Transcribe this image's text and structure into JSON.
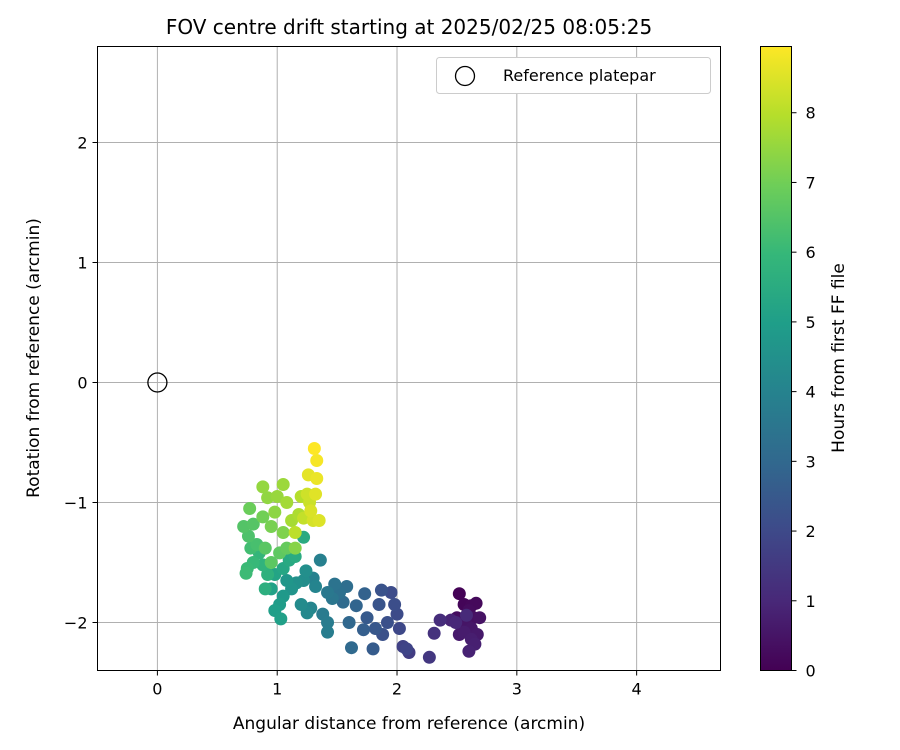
{
  "chart_data": {
    "type": "scatter",
    "title": "FOV centre drift starting at 2025/02/25 08:05:25",
    "xlabel": "Angular distance from reference (arcmin)",
    "ylabel": "Rotation from reference (arcmin)",
    "xlim": [
      -0.5,
      4.7
    ],
    "ylim": [
      -2.4,
      2.8
    ],
    "xticks": [
      0,
      1,
      2,
      3,
      4
    ],
    "yticks": [
      -2,
      -1,
      0,
      1,
      2
    ],
    "grid": true,
    "legend": {
      "position": "top-right",
      "entries": [
        "Reference platepar"
      ]
    },
    "reference_point": {
      "x": 0,
      "y": 0,
      "label": "Reference platepar"
    },
    "colorbar": {
      "label": "Hours from first FF file",
      "min": 0,
      "max": 8.95,
      "ticks": [
        0,
        1,
        2,
        3,
        4,
        5,
        6,
        7,
        8
      ],
      "colormap": "viridis"
    },
    "points": [
      {
        "x": 2.52,
        "y": -1.76,
        "h": 0.05
      },
      {
        "x": 2.56,
        "y": -1.85,
        "h": 0.1
      },
      {
        "x": 2.62,
        "y": -1.86,
        "h": 0.15
      },
      {
        "x": 2.66,
        "y": -1.84,
        "h": 0.2
      },
      {
        "x": 2.6,
        "y": -1.9,
        "h": 0.25
      },
      {
        "x": 2.5,
        "y": -1.96,
        "h": 0.3
      },
      {
        "x": 2.55,
        "y": -1.98,
        "h": 0.35
      },
      {
        "x": 2.64,
        "y": -1.96,
        "h": 0.4
      },
      {
        "x": 2.69,
        "y": -1.96,
        "h": 0.45
      },
      {
        "x": 2.58,
        "y": -2.02,
        "h": 0.5
      },
      {
        "x": 2.62,
        "y": -2.05,
        "h": 0.55
      },
      {
        "x": 2.67,
        "y": -2.1,
        "h": 0.6
      },
      {
        "x": 2.52,
        "y": -2.1,
        "h": 0.65
      },
      {
        "x": 2.56,
        "y": -2.08,
        "h": 0.7
      },
      {
        "x": 2.62,
        "y": -2.14,
        "h": 0.75
      },
      {
        "x": 2.65,
        "y": -2.18,
        "h": 0.8
      },
      {
        "x": 2.6,
        "y": -2.24,
        "h": 0.85
      },
      {
        "x": 2.45,
        "y": -1.98,
        "h": 0.9
      },
      {
        "x": 2.49,
        "y": -2.0,
        "h": 1.0
      },
      {
        "x": 2.58,
        "y": -1.94,
        "h": 1.05
      },
      {
        "x": 2.36,
        "y": -1.98,
        "h": 1.15
      },
      {
        "x": 2.31,
        "y": -2.09,
        "h": 1.3
      },
      {
        "x": 2.27,
        "y": -2.29,
        "h": 1.45
      },
      {
        "x": 2.1,
        "y": -2.25,
        "h": 1.6
      },
      {
        "x": 2.05,
        "y": -2.2,
        "h": 1.75
      },
      {
        "x": 2.08,
        "y": -2.22,
        "h": 1.85
      },
      {
        "x": 2.02,
        "y": -2.05,
        "h": 1.95
      },
      {
        "x": 2.0,
        "y": -1.93,
        "h": 2.05
      },
      {
        "x": 1.95,
        "y": -1.75,
        "h": 2.1
      },
      {
        "x": 1.98,
        "y": -1.85,
        "h": 2.15
      },
      {
        "x": 1.92,
        "y": -2.0,
        "h": 2.2
      },
      {
        "x": 1.88,
        "y": -2.1,
        "h": 2.25
      },
      {
        "x": 1.87,
        "y": -1.73,
        "h": 2.3
      },
      {
        "x": 1.85,
        "y": -1.85,
        "h": 2.35
      },
      {
        "x": 1.82,
        "y": -2.05,
        "h": 2.45
      },
      {
        "x": 1.75,
        "y": -1.96,
        "h": 2.55
      },
      {
        "x": 1.8,
        "y": -2.22,
        "h": 2.6
      },
      {
        "x": 1.72,
        "y": -2.06,
        "h": 2.7
      },
      {
        "x": 1.73,
        "y": -1.76,
        "h": 2.8
      },
      {
        "x": 1.66,
        "y": -1.86,
        "h": 2.9
      },
      {
        "x": 1.6,
        "y": -2.0,
        "h": 3.0
      },
      {
        "x": 1.62,
        "y": -2.21,
        "h": 3.05
      },
      {
        "x": 1.55,
        "y": -1.83,
        "h": 3.1
      },
      {
        "x": 1.58,
        "y": -1.7,
        "h": 3.2
      },
      {
        "x": 1.52,
        "y": -1.75,
        "h": 3.3
      },
      {
        "x": 1.48,
        "y": -1.68,
        "h": 3.4
      },
      {
        "x": 1.46,
        "y": -1.8,
        "h": 3.5
      },
      {
        "x": 1.42,
        "y": -1.75,
        "h": 3.6
      },
      {
        "x": 1.38,
        "y": -1.93,
        "h": 3.7
      },
      {
        "x": 1.42,
        "y": -2.0,
        "h": 3.75
      },
      {
        "x": 1.42,
        "y": -2.08,
        "h": 3.8
      },
      {
        "x": 1.36,
        "y": -1.48,
        "h": 3.9
      },
      {
        "x": 1.3,
        "y": -1.63,
        "h": 3.95
      },
      {
        "x": 1.32,
        "y": -1.7,
        "h": 4.05
      },
      {
        "x": 1.28,
        "y": -1.88,
        "h": 4.1
      },
      {
        "x": 1.25,
        "y": -1.92,
        "h": 4.2
      },
      {
        "x": 1.2,
        "y": -1.85,
        "h": 4.3
      },
      {
        "x": 1.22,
        "y": -1.65,
        "h": 4.4
      },
      {
        "x": 1.24,
        "y": -1.57,
        "h": 4.45
      },
      {
        "x": 1.16,
        "y": -1.67,
        "h": 4.5
      },
      {
        "x": 1.12,
        "y": -1.72,
        "h": 4.6
      },
      {
        "x": 1.08,
        "y": -1.65,
        "h": 4.7
      },
      {
        "x": 1.05,
        "y": -1.78,
        "h": 4.8
      },
      {
        "x": 1.02,
        "y": -1.85,
        "h": 4.9
      },
      {
        "x": 0.98,
        "y": -1.9,
        "h": 5.0
      },
      {
        "x": 1.03,
        "y": -1.97,
        "h": 5.05
      },
      {
        "x": 0.95,
        "y": -1.72,
        "h": 5.1
      },
      {
        "x": 0.98,
        "y": -1.6,
        "h": 5.2
      },
      {
        "x": 1.05,
        "y": -1.55,
        "h": 5.3
      },
      {
        "x": 1.1,
        "y": -1.48,
        "h": 5.4
      },
      {
        "x": 1.22,
        "y": -1.29,
        "h": 5.45
      },
      {
        "x": 1.15,
        "y": -1.45,
        "h": 5.5
      },
      {
        "x": 0.9,
        "y": -1.72,
        "h": 5.6
      },
      {
        "x": 0.92,
        "y": -1.6,
        "h": 5.7
      },
      {
        "x": 0.88,
        "y": -1.52,
        "h": 5.8
      },
      {
        "x": 0.85,
        "y": -1.42,
        "h": 5.9
      },
      {
        "x": 0.8,
        "y": -1.5,
        "h": 6.0
      },
      {
        "x": 0.75,
        "y": -1.55,
        "h": 6.05
      },
      {
        "x": 0.74,
        "y": -1.59,
        "h": 6.1
      },
      {
        "x": 0.78,
        "y": -1.38,
        "h": 6.2
      },
      {
        "x": 0.83,
        "y": -1.35,
        "h": 6.3
      },
      {
        "x": 0.76,
        "y": -1.28,
        "h": 6.4
      },
      {
        "x": 0.72,
        "y": -1.2,
        "h": 6.5
      },
      {
        "x": 0.8,
        "y": -1.18,
        "h": 6.55
      },
      {
        "x": 0.9,
        "y": -1.38,
        "h": 6.6
      },
      {
        "x": 0.95,
        "y": -1.5,
        "h": 6.65
      },
      {
        "x": 1.02,
        "y": -1.42,
        "h": 6.7
      },
      {
        "x": 1.08,
        "y": -1.38,
        "h": 6.8
      },
      {
        "x": 0.77,
        "y": -1.05,
        "h": 6.9
      },
      {
        "x": 0.88,
        "y": -1.12,
        "h": 7.0
      },
      {
        "x": 0.95,
        "y": -1.2,
        "h": 7.1
      },
      {
        "x": 1.05,
        "y": -1.25,
        "h": 7.2
      },
      {
        "x": 1.15,
        "y": -1.38,
        "h": 7.3
      },
      {
        "x": 0.98,
        "y": -1.08,
        "h": 7.4
      },
      {
        "x": 0.92,
        "y": -0.96,
        "h": 7.45
      },
      {
        "x": 0.88,
        "y": -0.87,
        "h": 7.5
      },
      {
        "x": 1.0,
        "y": -0.95,
        "h": 7.55
      },
      {
        "x": 1.05,
        "y": -0.85,
        "h": 7.6
      },
      {
        "x": 1.08,
        "y": -1.0,
        "h": 7.7
      },
      {
        "x": 1.12,
        "y": -1.15,
        "h": 7.75
      },
      {
        "x": 1.18,
        "y": -1.1,
        "h": 7.85
      },
      {
        "x": 1.2,
        "y": -0.95,
        "h": 7.95
      },
      {
        "x": 1.15,
        "y": -1.25,
        "h": 8.05
      },
      {
        "x": 1.22,
        "y": -1.13,
        "h": 8.15
      },
      {
        "x": 1.27,
        "y": -1.0,
        "h": 8.25
      },
      {
        "x": 1.25,
        "y": -0.93,
        "h": 8.3
      },
      {
        "x": 1.3,
        "y": -1.15,
        "h": 8.4
      },
      {
        "x": 1.28,
        "y": -1.07,
        "h": 8.45
      },
      {
        "x": 1.35,
        "y": -1.15,
        "h": 8.5
      },
      {
        "x": 1.32,
        "y": -0.93,
        "h": 8.55
      },
      {
        "x": 1.26,
        "y": -0.77,
        "h": 8.6
      },
      {
        "x": 1.33,
        "y": -0.8,
        "h": 8.7
      },
      {
        "x": 1.33,
        "y": -0.65,
        "h": 8.85
      },
      {
        "x": 1.31,
        "y": -0.55,
        "h": 8.95
      }
    ]
  }
}
